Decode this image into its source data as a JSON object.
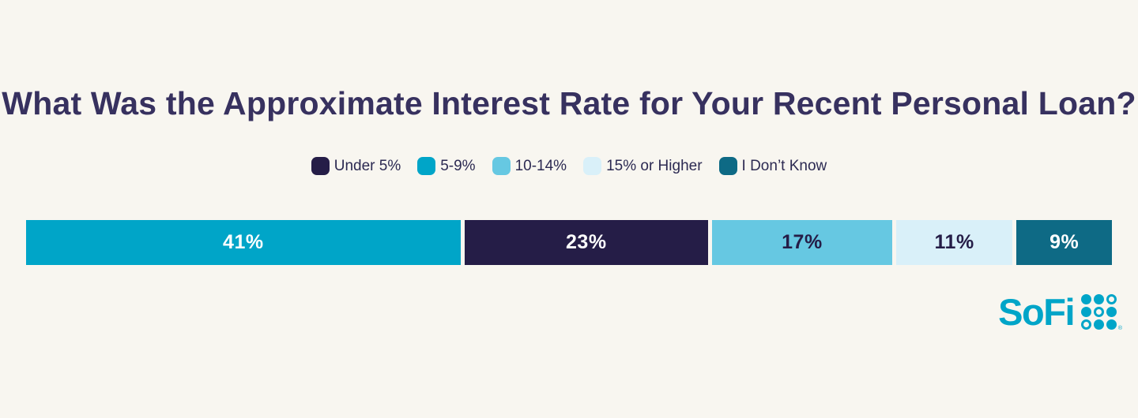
{
  "page": {
    "background": "#f8f6f0"
  },
  "title": "What Was the Approximate Interest Rate for Your Recent Personal Loan?",
  "colors": {
    "title_text": "#37315f",
    "legend_text": "#2c2a52",
    "navy": "#251d47",
    "teal": "#00a5c8",
    "light_blue": "#66c8e2",
    "pale_blue": "#d9f0f9",
    "dark_teal": "#0e6a85",
    "white": "#ffffff"
  },
  "legend": {
    "items": [
      {
        "label": "Under 5%",
        "color": "#251d47"
      },
      {
        "label": "5-9%",
        "color": "#00a5c8"
      },
      {
        "label": "10-14%",
        "color": "#66c8e2"
      },
      {
        "label": "15% or Higher",
        "color": "#d9f0f9"
      },
      {
        "label": "I Don’t Know",
        "color": "#0e6a85"
      }
    ]
  },
  "chart_data": {
    "type": "bar",
    "variant": "horizontal_stacked_single_bar",
    "title": "What Was the Approximate Interest Rate for Your Recent Personal Loan?",
    "unit": "%",
    "categories": [
      "Under 5%",
      "5-9%",
      "10-14%",
      "15% or Higher",
      "I Don't Know"
    ],
    "values": [
      23,
      41,
      17,
      11,
      9
    ],
    "legend_position": "top-center",
    "segments_in_display_order": [
      {
        "category": "5-9%",
        "value": 41,
        "label": "41%",
        "color": "#00a5c8",
        "text_color": "#ffffff"
      },
      {
        "category": "Under 5%",
        "value": 23,
        "label": "23%",
        "color": "#251d47",
        "text_color": "#ffffff"
      },
      {
        "category": "10-14%",
        "value": 17,
        "label": "17%",
        "color": "#66c8e2",
        "text_color": "#251d47"
      },
      {
        "category": "15% or Higher",
        "value": 11,
        "label": "11%",
        "color": "#d9f0f9",
        "text_color": "#251d47"
      },
      {
        "category": "I Don't Know",
        "value": 9,
        "label": "9%",
        "color": "#0e6a85",
        "text_color": "#ffffff"
      }
    ]
  },
  "logo": {
    "text": "SoFi",
    "color": "#00a5c8",
    "trademark": "®",
    "dot_pattern": [
      [
        1,
        1,
        0
      ],
      [
        1,
        0,
        1
      ],
      [
        0,
        1,
        1
      ]
    ]
  }
}
